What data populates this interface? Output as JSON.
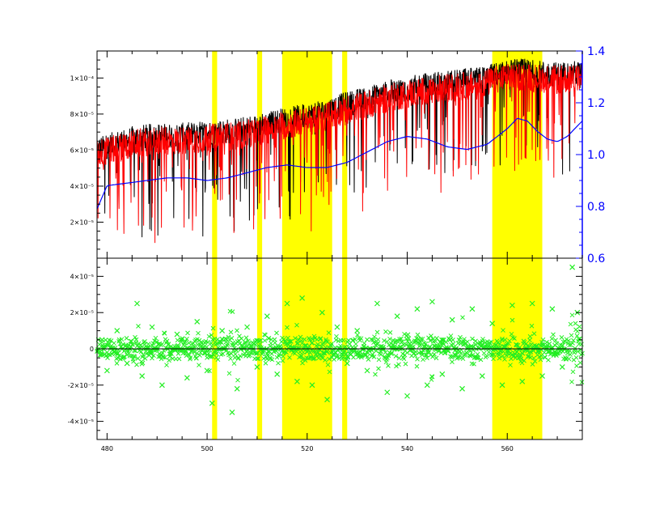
{
  "chart_data": [
    {
      "type": "line",
      "panel": "top",
      "xlim": [
        478,
        575
      ],
      "ylim": [
        0.0,
        0.000115
      ],
      "y2lim": [
        0.6,
        1.4
      ],
      "x_ticks": [
        480,
        500,
        520,
        540,
        560
      ],
      "x_tick_labels": [
        "480",
        "500",
        "520",
        "540",
        "560"
      ],
      "y_ticks": [
        2e-05,
        4e-05,
        6e-05,
        8e-05,
        0.0001
      ],
      "y_tick_labels": [
        "2×10⁻⁵",
        "4×10⁻⁵",
        "6×10⁻⁵",
        "8×10⁻⁵",
        "1×10⁻⁴"
      ],
      "y2_ticks": [
        0.6,
        0.8,
        1.0,
        1.2,
        1.4
      ],
      "y2_tick_labels": [
        "0.6",
        "0.8",
        "1.0",
        "1.2",
        "1.4"
      ],
      "shaded_regions": [
        [
          501,
          502
        ],
        [
          510,
          511
        ],
        [
          515,
          525
        ],
        [
          527,
          528
        ],
        [
          557,
          567
        ]
      ],
      "series": [
        {
          "color": "#000000",
          "x": [
            478,
            482,
            486,
            490,
            494,
            498,
            502,
            506,
            510,
            514,
            518,
            522,
            526,
            530,
            534,
            538,
            542,
            546,
            550,
            554,
            558,
            562,
            566,
            570,
            575
          ],
          "y": [
            6e-05,
            6.4e-05,
            6.7e-05,
            6.8e-05,
            6.8e-05,
            6.9e-05,
            7e-05,
            7.1e-05,
            7.3e-05,
            7.6e-05,
            7.8e-05,
            8e-05,
            8.4e-05,
            8.7e-05,
            9e-05,
            9.3e-05,
            9.5e-05,
            9.7e-05,
            9.8e-05,
            9.9e-05,
            0.000102,
            0.000104,
            0.000103,
            0.000102,
            0.000103
          ]
        },
        {
          "color": "#ff0000",
          "x": [
            478,
            482,
            486,
            490,
            494,
            498,
            502,
            506,
            510,
            514,
            518,
            522,
            526,
            530,
            534,
            538,
            542,
            546,
            550,
            554,
            558,
            562,
            566,
            570,
            575
          ],
          "y": [
            5.8e-05,
            6.1e-05,
            6.4e-05,
            6.5e-05,
            6.5e-05,
            6.6e-05,
            6.7e-05,
            6.8e-05,
            7e-05,
            7.3e-05,
            7.5e-05,
            7.7e-05,
            8.1e-05,
            8.4e-05,
            8.7e-05,
            9e-05,
            9.2e-05,
            9.4e-05,
            9.5e-05,
            9.6e-05,
            9.9e-05,
            0.000101,
            0.0001,
            9.9e-05,
            0.0001
          ]
        },
        {
          "color": "#0000ff",
          "axis": "right",
          "x": [
            478,
            480,
            484,
            488,
            492,
            496,
            500,
            504,
            508,
            512,
            516,
            520,
            524,
            528,
            532,
            536,
            540,
            544,
            548,
            552,
            556,
            560,
            562,
            564,
            566,
            568,
            570,
            572,
            575
          ],
          "y": [
            0.79,
            0.88,
            0.89,
            0.9,
            0.91,
            0.91,
            0.9,
            0.91,
            0.93,
            0.95,
            0.96,
            0.95,
            0.95,
            0.97,
            1.01,
            1.05,
            1.07,
            1.06,
            1.03,
            1.02,
            1.04,
            1.1,
            1.14,
            1.13,
            1.09,
            1.06,
            1.05,
            1.07,
            1.13
          ]
        }
      ]
    },
    {
      "type": "scatter",
      "panel": "bottom",
      "xlim": [
        478,
        575
      ],
      "ylim": [
        -5e-05,
        5e-05
      ],
      "x_ticks": [
        480,
        500,
        520,
        540,
        560
      ],
      "x_tick_labels": [
        "480",
        "500",
        "520",
        "540",
        "560"
      ],
      "y_ticks": [
        -4e-05,
        -2e-05,
        0,
        2e-05,
        4e-05
      ],
      "y_tick_labels": [
        "-4×10⁻⁵",
        "-2×10⁻⁵",
        "0",
        "2×10⁻⁵",
        "4×10⁻⁵"
      ],
      "zero_line": true,
      "shaded_regions": [
        [
          501,
          502
        ],
        [
          510,
          511
        ],
        [
          515,
          525
        ],
        [
          527,
          528
        ],
        [
          557,
          567
        ]
      ],
      "series": [
        {
          "color": "#22ee22",
          "marker": "x",
          "x": [
            479,
            480,
            482,
            484,
            486,
            487,
            489,
            491,
            494,
            496,
            498,
            500,
            501,
            503,
            505,
            506,
            508,
            510,
            512,
            514,
            516,
            518,
            519,
            521,
            523,
            524,
            526,
            528,
            530,
            532,
            534,
            536,
            538,
            540,
            542,
            544,
            545,
            547,
            549,
            551,
            553,
            555,
            557,
            559,
            561,
            563,
            565,
            567,
            569,
            571,
            573,
            574
          ],
          "y": [
            5e-06,
            -1.2e-05,
            1e-05,
            -8e-06,
            2.5e-05,
            -1.5e-05,
            1.2e-05,
            -2e-05,
            8e-06,
            -1.6e-05,
            1.5e-05,
            -1.2e-05,
            -3e-05,
            1e-05,
            -3.5e-05,
            -2.2e-05,
            1.2e-05,
            -1e-05,
            1.8e-05,
            -1.4e-05,
            2.5e-05,
            -1.8e-05,
            2.8e-05,
            -2e-05,
            2e-05,
            -2.8e-05,
            1.2e-05,
            -8e-06,
            1e-05,
            -1.2e-05,
            2.5e-05,
            -2.4e-05,
            1.8e-05,
            -2.6e-05,
            2.2e-05,
            -2e-05,
            2.6e-05,
            -1.4e-05,
            1.6e-05,
            -2.2e-05,
            2.2e-05,
            -1.5e-05,
            1.4e-05,
            -2e-05,
            2.4e-05,
            -1.8e-05,
            2.5e-05,
            -1.5e-05,
            2.2e-05,
            -1e-05,
            4.5e-05,
            2e-05
          ]
        }
      ]
    }
  ]
}
